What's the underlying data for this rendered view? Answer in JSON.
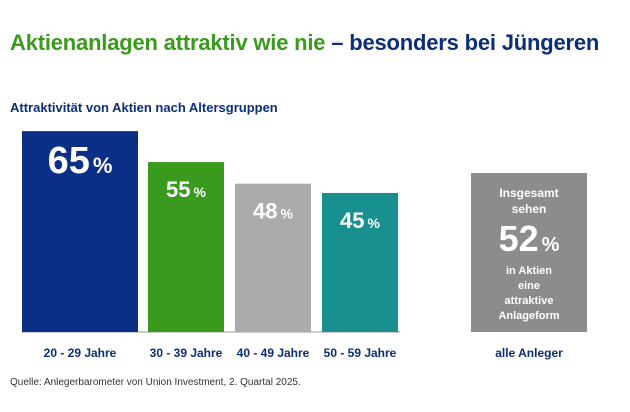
{
  "header": {
    "title_part1": "Aktienanlagen attraktiv wie nie",
    "title_part2": "– besonders bei Jüngeren",
    "subtitle": "Attraktivität von Aktien nach Altersgruppen"
  },
  "chart_data": {
    "type": "bar",
    "title": "",
    "xlabel": "",
    "ylabel": "",
    "ylim": [
      0,
      70
    ],
    "grid": false,
    "unit": "%",
    "categories": [
      "20 - 29 Jahre",
      "30 - 39 Jahre",
      "40 - 49 Jahre",
      "50 - 59 Jahre"
    ],
    "values": [
      65,
      55,
      48,
      45
    ],
    "colors": [
      "#0b2e87",
      "#3a9a1e",
      "#ababab",
      "#17908f"
    ],
    "total": {
      "category": "alle Anleger",
      "value": 52,
      "text_top": [
        "Insgesamt",
        "sehen"
      ],
      "text_bottom": [
        "in Aktien",
        "eine",
        "attraktive",
        "Anlageform"
      ],
      "color": "#8c8c8c"
    }
  },
  "footer": {
    "source": "Quelle: Anlegerbarometer von Union Investment, 2. Quartal 2025."
  }
}
